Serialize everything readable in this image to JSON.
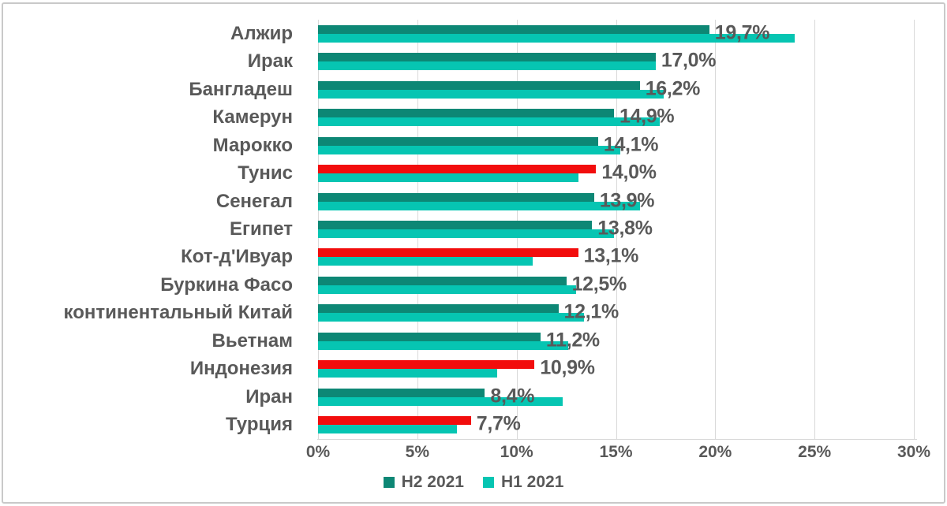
{
  "chart_data": {
    "type": "bar",
    "orientation": "horizontal",
    "title": "",
    "xlabel": "",
    "ylabel": "",
    "xlim": [
      0,
      30
    ],
    "x_ticks": [
      "0%",
      "5%",
      "10%",
      "15%",
      "20%",
      "25%",
      "30%"
    ],
    "x_tick_values": [
      0,
      5,
      10,
      15,
      20,
      25,
      30
    ],
    "grid": true,
    "legend_position": "bottom",
    "categories": [
      "Алжир",
      "Ирак",
      "Бангладеш",
      "Камерун",
      "Марокко",
      "Тунис",
      "Сенегал",
      "Египет",
      "Кот-д'Ивуар",
      "Буркина Фасо",
      "континентальный Китай",
      "Вьетнам",
      "Индонезия",
      "Иран",
      "Турция"
    ],
    "series": [
      {
        "name": "H2 2021",
        "color": "#0d8775",
        "values": [
          19.7,
          17.0,
          16.2,
          14.9,
          14.1,
          14.0,
          13.9,
          13.8,
          13.1,
          12.5,
          12.1,
          11.2,
          10.9,
          8.4,
          7.7
        ],
        "data_labels": [
          "19,7%",
          "17,0%",
          "16,2%",
          "14,9%",
          "14,1%",
          "14,0%",
          "13,9%",
          "13,8%",
          "13,1%",
          "12,5%",
          "12,1%",
          "11,2%",
          "10,9%",
          "8,4%",
          "7,7%"
        ],
        "highlighted_indexes": [
          5,
          8,
          12,
          14
        ],
        "highlight_color": "#f20d0d"
      },
      {
        "name": "H1 2021",
        "color": "#06c5b2",
        "values": [
          24.0,
          17.0,
          17.4,
          17.2,
          15.2,
          13.1,
          16.2,
          14.9,
          10.8,
          13.0,
          13.4,
          12.6,
          9.0,
          12.3,
          7.0
        ],
        "data_labels": []
      }
    ],
    "legend": [
      {
        "label": "H2 2021",
        "color": "#0d8775"
      },
      {
        "label": "H1 2021",
        "color": "#06c5b2"
      }
    ]
  },
  "colors": {
    "grid": "#d9d9d9",
    "text": "#595959",
    "background": "#ffffff",
    "frame_border": "#c9c9c9"
  }
}
